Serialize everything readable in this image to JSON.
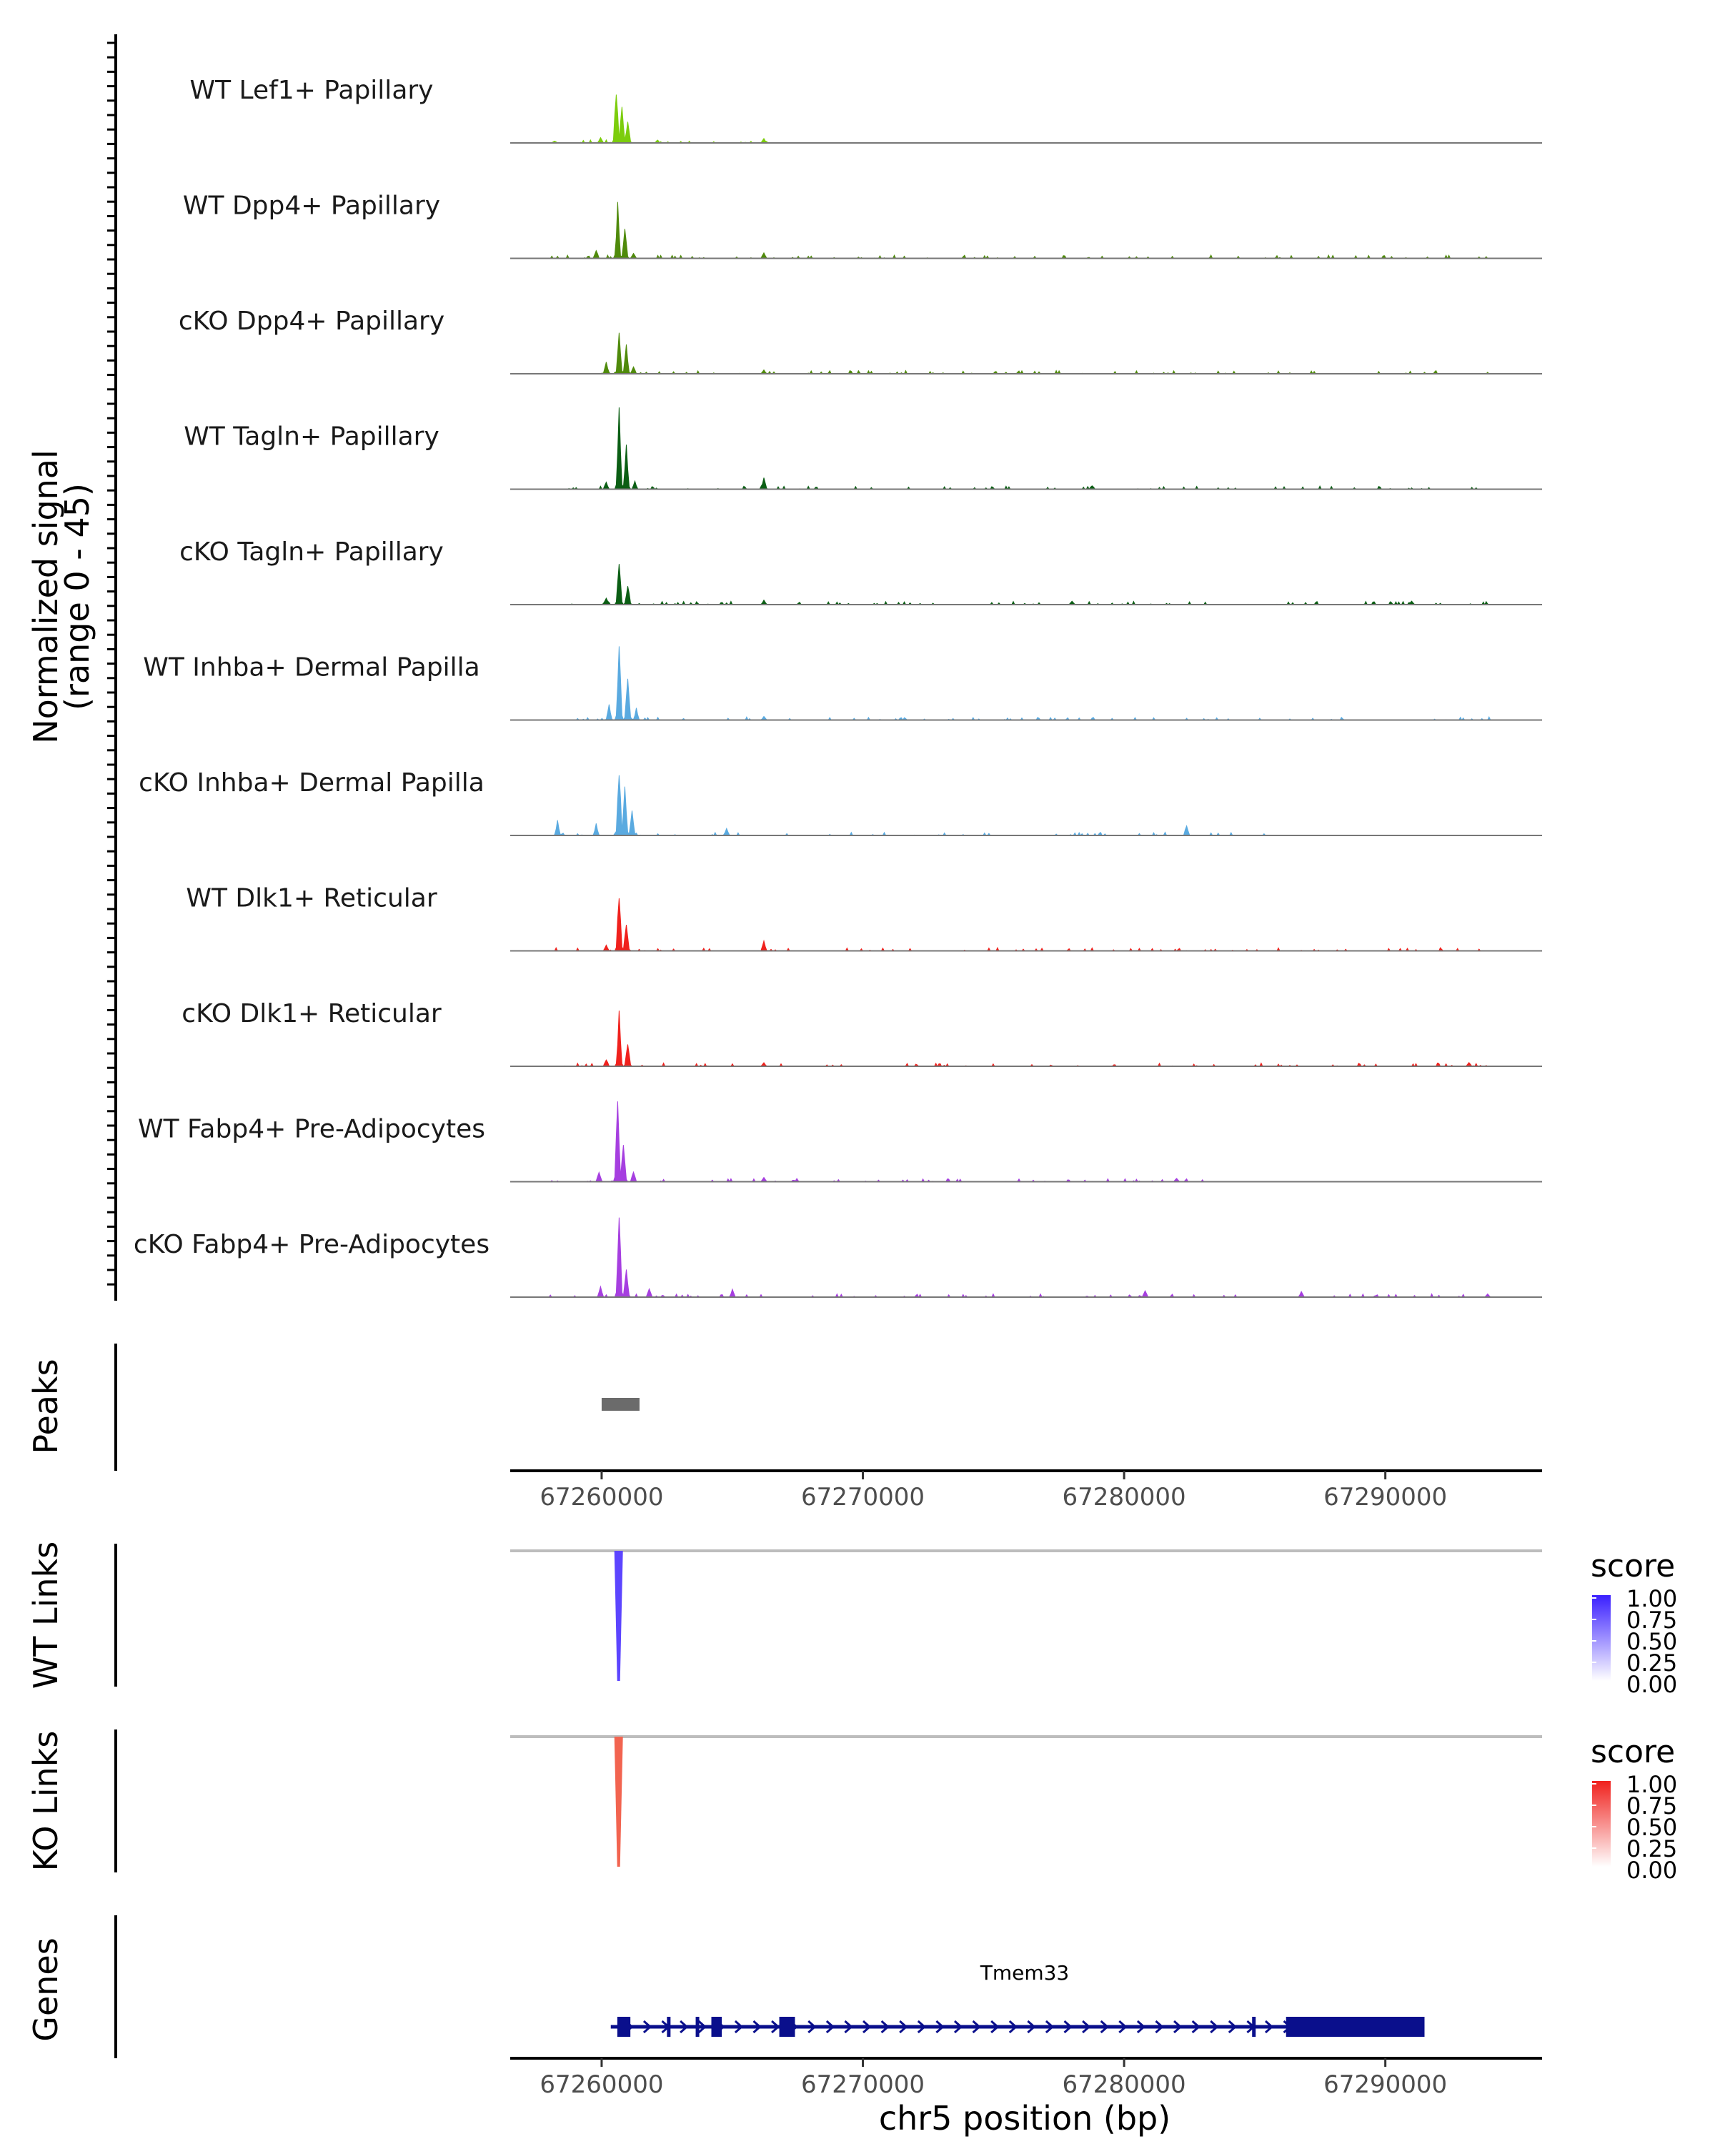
{
  "chart_data": {
    "type": "area",
    "region": "chr5",
    "x_range": [
      67256500,
      67296000
    ],
    "x_ticks": [
      "67260000",
      "67270000",
      "67280000",
      "67290000"
    ],
    "x_tick_values": [
      67260000,
      67270000,
      67280000,
      67290000
    ],
    "xlabel": "chr5 position (bp)",
    "ylabel": "Normalized signal",
    "ylabel_range": "(range 0 - 45)",
    "ylim": [
      0,
      45
    ],
    "coverage_tracks": [
      {
        "name": "WT Lef1+ Papillary",
        "color": "#7CCD0C",
        "peaks": [
          [
            67260550,
            31
          ],
          [
            67260800,
            22
          ],
          [
            67261000,
            12
          ],
          [
            67259950,
            3
          ],
          [
            67266200,
            2.5
          ],
          [
            67258200,
            1.2
          ]
        ],
        "noise": [
          67258000,
          67266500
        ]
      },
      {
        "name": "WT Dpp4+ Papillary",
        "color": "#4F8A0B",
        "peaks": [
          [
            67260600,
            28
          ],
          [
            67260900,
            18
          ],
          [
            67259800,
            5
          ],
          [
            67261200,
            3
          ],
          [
            67266200,
            3.5
          ]
        ],
        "noise": [
          67258000,
          67294000
        ]
      },
      {
        "name": "cKO Dpp4+ Papillary",
        "color": "#4F8A0B",
        "peaks": [
          [
            67260650,
            24
          ],
          [
            67260950,
            16
          ],
          [
            67260150,
            6
          ],
          [
            67261200,
            4
          ],
          [
            67266200,
            2
          ]
        ],
        "noise": [
          67258000,
          67294000
        ]
      },
      {
        "name": "WT Tagln+ Papillary",
        "color": "#0B5E14",
        "peaks": [
          [
            67260650,
            41
          ],
          [
            67260950,
            22
          ],
          [
            67260200,
            4
          ],
          [
            67261300,
            4
          ],
          [
            67266200,
            7
          ],
          [
            67278800,
            2.2
          ]
        ],
        "noise": [
          67258000,
          67294000
        ]
      },
      {
        "name": "cKO Tagln+ Papillary",
        "color": "#0B5E14",
        "peaks": [
          [
            67260650,
            26
          ],
          [
            67261000,
            12
          ],
          [
            67260150,
            4
          ],
          [
            67266200,
            2.5
          ],
          [
            67278000,
            2
          ],
          [
            67291000,
            2
          ]
        ],
        "noise": [
          67258000,
          67294000
        ]
      },
      {
        "name": "WT Inhba+ Dermal Papilla",
        "color": "#5AAAE0",
        "peaks": [
          [
            67260650,
            43
          ],
          [
            67261000,
            24
          ],
          [
            67260300,
            8
          ],
          [
            67261350,
            6
          ],
          [
            67266200,
            2
          ]
        ],
        "noise": [
          67258000,
          67294000
        ]
      },
      {
        "name": "cKO Inhba+ Dermal Papilla",
        "color": "#5AAAE0",
        "peaks": [
          [
            67260650,
            38
          ],
          [
            67260900,
            30
          ],
          [
            67261150,
            16
          ],
          [
            67258300,
            8
          ],
          [
            67259800,
            6
          ],
          [
            67282400,
            6
          ],
          [
            67264800,
            4
          ]
        ],
        "noise": [
          67258000,
          67285500
        ]
      },
      {
        "name": "WT Dlk1+ Reticular",
        "color": "#F0211D",
        "peaks": [
          [
            67260650,
            34
          ],
          [
            67260950,
            14
          ],
          [
            67266200,
            5
          ],
          [
            67260150,
            3
          ]
        ],
        "noise": [
          67258000,
          67294000
        ]
      },
      {
        "name": "cKO Dlk1+ Reticular",
        "color": "#F0211D",
        "peaks": [
          [
            67260650,
            28
          ],
          [
            67261000,
            13
          ],
          [
            67260150,
            4
          ],
          [
            67266200,
            2
          ],
          [
            67293200,
            2
          ]
        ],
        "noise": [
          67258000,
          67294000
        ]
      },
      {
        "name": "WT Fabp4+ Pre-Adipocytes",
        "color": "#A63FE0",
        "peaks": [
          [
            67260600,
            46
          ],
          [
            67260850,
            22
          ],
          [
            67259900,
            6
          ],
          [
            67261200,
            6
          ],
          [
            67266200,
            2.5
          ],
          [
            67282000,
            2
          ]
        ],
        "noise": [
          67258000,
          67283000
        ]
      },
      {
        "name": "cKO Fabp4+ Pre-Adipocytes",
        "color": "#A63FE0",
        "peaks": [
          [
            67260650,
            50
          ],
          [
            67260950,
            16
          ],
          [
            67259950,
            6
          ],
          [
            67261800,
            5
          ],
          [
            67265000,
            4
          ],
          [
            67280800,
            4
          ],
          [
            67286800,
            3
          ],
          [
            67293900,
            2
          ]
        ],
        "noise": [
          67258000,
          67294000
        ]
      }
    ],
    "peaks_track": {
      "label": "Peaks",
      "color": "#6b6b6b",
      "intervals": [
        [
          67260000,
          67261450
        ]
      ]
    },
    "link_tracks": [
      {
        "label": "WT Links",
        "color_low": "#ffffff",
        "color_high": "#3A1FFF",
        "bar_color": "#5C45FF",
        "anchor": 67260650,
        "score": 1.0
      },
      {
        "label": "KO Links",
        "color_low": "#ffffff",
        "color_high": "#F0211D",
        "bar_color": "#F26450",
        "anchor": 67260650,
        "score": 0.8
      }
    ],
    "legend": {
      "title": "score",
      "ticks": [
        "1.00",
        "0.75",
        "0.50",
        "0.25",
        "0.00"
      ]
    },
    "genes_track": {
      "label": "Genes",
      "gene": "Tmem33",
      "color": "#0A0F8C",
      "start": 67260350,
      "end": 67291500,
      "strand": "+",
      "exons": [
        [
          67260600,
          67261100
        ],
        [
          67262500,
          67262600
        ],
        [
          67263600,
          67263700
        ],
        [
          67264200,
          67264600
        ],
        [
          67266800,
          67267400
        ],
        [
          67284900,
          67285000
        ],
        [
          67286200,
          67291500
        ]
      ],
      "utr_thin": [
        [
          67286200,
          67286300
        ]
      ]
    }
  }
}
